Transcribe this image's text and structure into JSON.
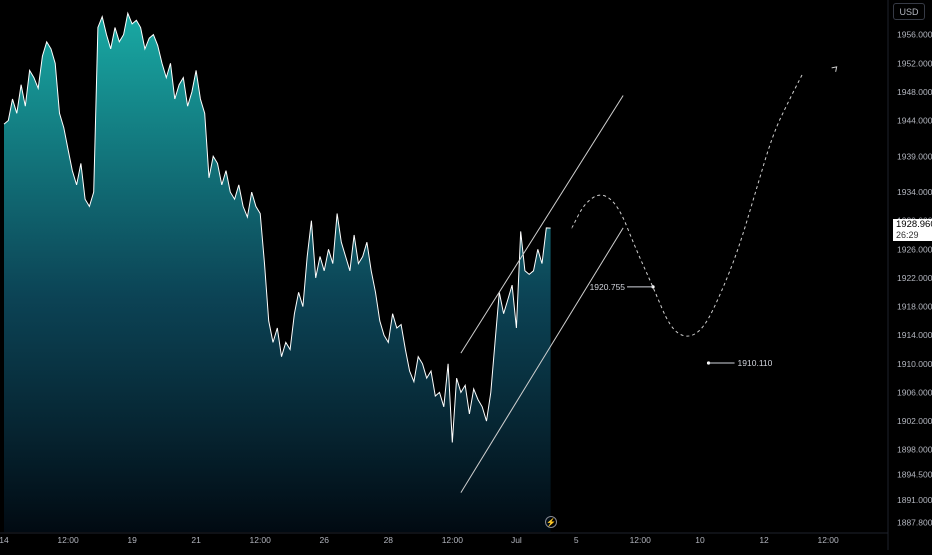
{
  "chart_data": {
    "type": "area",
    "currency": "USD",
    "price_axis": {
      "ticks": [
        "1956.000",
        "1952.000",
        "1948.000",
        "1944.000",
        "1939.000",
        "1934.000",
        "1930.000",
        "1926.000",
        "1922.000",
        "1918.000",
        "1914.000",
        "1910.000",
        "1906.000",
        "1902.000",
        "1898.000",
        "1894.500",
        "1891.000",
        "1887.800"
      ],
      "tick_values": [
        1956.0,
        1952.0,
        1948.0,
        1944.0,
        1939.0,
        1934.0,
        1930.0,
        1926.0,
        1922.0,
        1918.0,
        1914.0,
        1910.0,
        1906.0,
        1902.0,
        1898.0,
        1894.5,
        1891.0,
        1887.8
      ],
      "ylim": [
        1886.5,
        1960.0
      ]
    },
    "time_axis": {
      "labels": [
        "14",
        "12:00",
        "19",
        "21",
        "12:00",
        "26",
        "28",
        "12:00",
        "Jul",
        "5",
        "12:00",
        "10",
        "12",
        "12:00"
      ],
      "label_index": [
        0,
        15,
        30,
        45,
        60,
        75,
        90,
        105,
        120,
        134,
        149,
        163,
        178,
        193
      ]
    },
    "series": [
      {
        "values": [
          1943.5,
          1944,
          1947,
          1945,
          1949,
          1946,
          1951,
          1950,
          1948.5,
          1953,
          1955,
          1954,
          1952,
          1945,
          1943,
          1940,
          1937,
          1935,
          1938,
          1933,
          1932,
          1934,
          1957,
          1958.5,
          1956,
          1954,
          1957,
          1955,
          1956,
          1959,
          1957.5,
          1958,
          1957,
          1954,
          1955.5,
          1956,
          1954.5,
          1952,
          1950,
          1952,
          1947,
          1949,
          1950,
          1946,
          1948,
          1951,
          1947,
          1945,
          1936,
          1939,
          1938,
          1935,
          1937,
          1934,
          1933,
          1935,
          1932,
          1930.5,
          1934,
          1932,
          1931,
          1924,
          1916,
          1913,
          1915,
          1911,
          1913,
          1912,
          1917,
          1920,
          1918,
          1925,
          1930,
          1922,
          1925,
          1923,
          1926,
          1924,
          1931,
          1927,
          1925,
          1923,
          1928,
          1924,
          1925,
          1927,
          1923,
          1920,
          1916,
          1914,
          1913,
          1917,
          1915,
          1915.5,
          1912,
          1909,
          1907.5,
          1911,
          1910,
          1908,
          1909,
          1905.5,
          1906,
          1904,
          1910,
          1899,
          1908,
          1906,
          1907,
          1903,
          1906.5,
          1905,
          1904,
          1902,
          1906,
          1913,
          1920,
          1917,
          1919,
          1921,
          1915,
          1928.5,
          1923,
          1922.5,
          1923,
          1926,
          1924,
          1929,
          1928.96
        ],
        "last_price": "1928.960",
        "countdown": "26:29"
      }
    ],
    "channel": {
      "upper": {
        "from": [
          107,
          1911.5
        ],
        "to": [
          145,
          1947.5
        ]
      },
      "lower": {
        "from": [
          107,
          1892.0
        ],
        "to": [
          145,
          1929.0
        ]
      }
    },
    "projection": {
      "points": [
        [
          133,
          1929
        ],
        [
          136,
          1932.5
        ],
        [
          140,
          1934
        ],
        [
          144,
          1932
        ],
        [
          148,
          1926
        ],
        [
          152,
          1920.755
        ],
        [
          156,
          1915
        ],
        [
          160,
          1913.5
        ],
        [
          164,
          1915
        ],
        [
          168,
          1920
        ],
        [
          172,
          1926
        ],
        [
          176,
          1934
        ],
        [
          180,
          1942
        ],
        [
          184,
          1947
        ],
        [
          187,
          1950.5
        ]
      ],
      "arrow_tip": [
        195,
        1951.5
      ]
    },
    "annotations": [
      {
        "text": "1920.755",
        "anchor": [
          152,
          1920.755
        ]
      },
      {
        "text": "1910.110",
        "anchor": [
          165,
          1910.11
        ]
      }
    ],
    "colors": {
      "area_top": "#1ab3ad",
      "area_bottom": "#010a12",
      "line": "#ffffff",
      "background": "#000000",
      "axis_text": "#b2b5be",
      "drawing": "#cfcfcf"
    },
    "grid": false
  }
}
